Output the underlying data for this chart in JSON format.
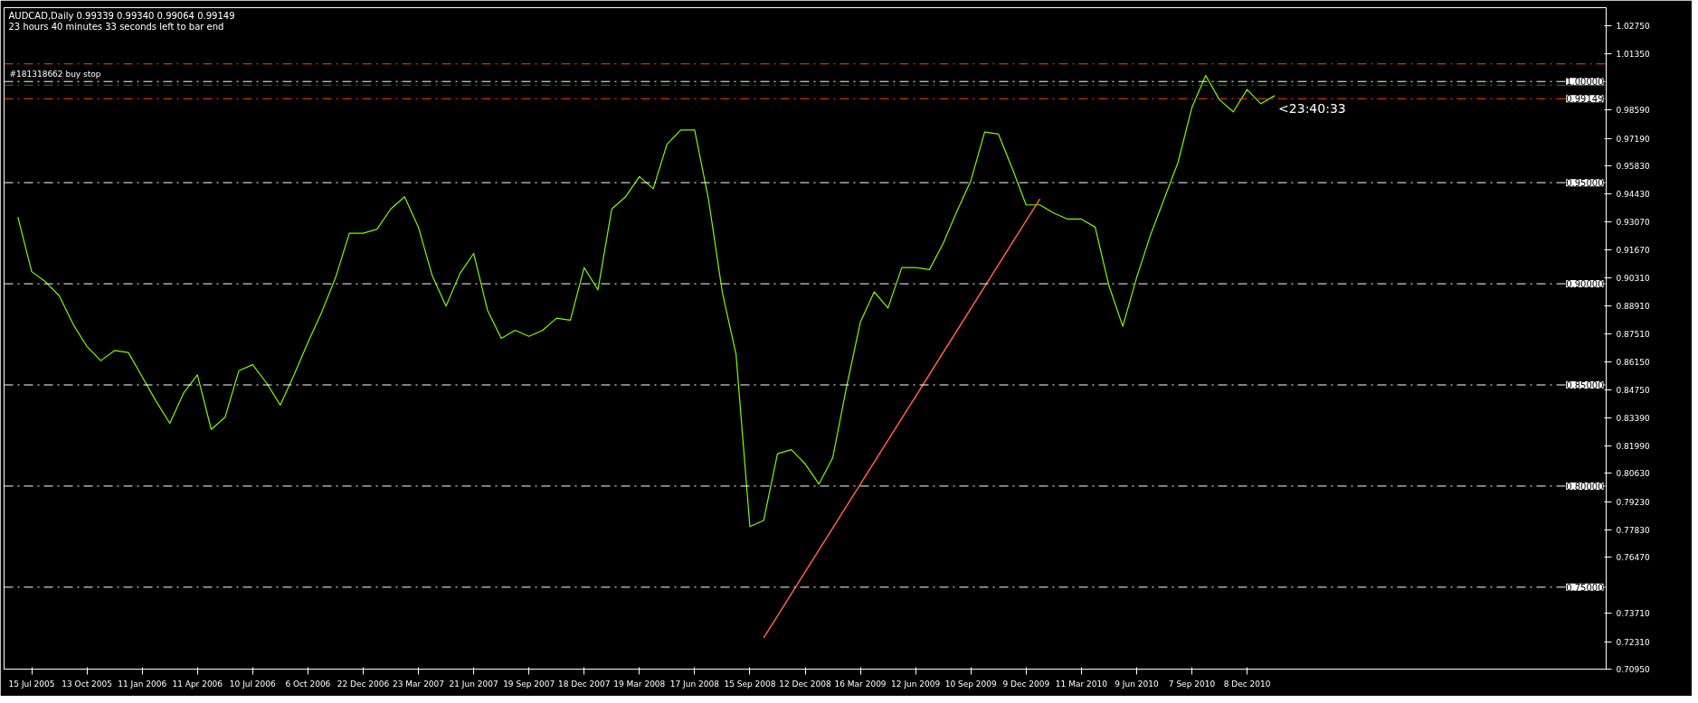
{
  "chart_data": {
    "type": "line",
    "title": "AUDCAD,Daily  0.99339 0.99340 0.99064 0.99149",
    "subtitle": "23 hours 40 minutes 33 seconds left to bar end",
    "categories": [
      null,
      "15 Jul 2005",
      null,
      null,
      null,
      "13 Oct 2005",
      null,
      null,
      null,
      "11 Jan 2006",
      null,
      null,
      null,
      "11 Apr 2006",
      null,
      null,
      null,
      "10 Jul 2006",
      null,
      null,
      null,
      "6 Oct 2006",
      null,
      null,
      null,
      "22 Dec 2006",
      null,
      null,
      null,
      "23 Mar 2007",
      null,
      null,
      null,
      "21 Jun 2007",
      null,
      null,
      null,
      "19 Sep 2007",
      null,
      null,
      null,
      "18 Dec 2007",
      null,
      null,
      null,
      "19 Mar 2008",
      null,
      null,
      null,
      "17 Jun 2008",
      null,
      null,
      null,
      "15 Sep 2008",
      null,
      null,
      null,
      "12 Dec 2008",
      null,
      null,
      null,
      "16 Mar 2009",
      null,
      null,
      null,
      "12 Jun 2009",
      null,
      null,
      null,
      "10 Sep 2009",
      null,
      null,
      null,
      "9 Dec 2009",
      null,
      null,
      null,
      "11 Mar 2010",
      null,
      null,
      null,
      "9 Jun 2010",
      null,
      null,
      null,
      "7 Sep 2010",
      null,
      null,
      null,
      "8 Dec 2010",
      null,
      null,
      null,
      null,
      null,
      null,
      null,
      null,
      null,
      null,
      null,
      null,
      null,
      null,
      null,
      null,
      null,
      null,
      null,
      null,
      null,
      null,
      null,
      null,
      null
    ],
    "series": [
      {
        "color": "#7cfc00",
        "values": [
          0.933,
          0.906,
          0.901,
          0.894,
          0.88,
          0.869,
          0.862,
          0.867,
          0.866,
          0.854,
          0.842,
          0.831,
          0.846,
          0.855,
          0.828,
          0.834,
          0.857,
          0.86,
          0.851,
          0.84,
          0.855,
          0.871,
          0.886,
          0.903,
          0.925,
          0.925,
          0.927,
          0.937,
          0.943,
          0.928,
          0.904,
          0.889,
          0.905,
          0.915,
          0.887,
          0.873,
          0.877,
          0.874,
          0.877,
          0.883,
          0.882,
          0.908,
          0.897,
          0.937,
          0.943,
          0.953,
          0.947,
          0.969,
          0.976,
          0.976,
          0.942,
          0.896,
          0.865,
          0.78,
          0.783,
          0.816,
          0.818,
          0.811,
          0.801,
          0.814,
          0.849,
          0.881,
          0.896,
          0.888,
          0.908,
          0.908,
          0.907,
          0.92,
          0.936,
          0.951,
          0.975,
          0.974,
          0.957,
          0.939,
          0.939,
          0.935,
          0.932,
          0.932,
          0.928,
          0.899,
          0.879,
          0.903,
          0.924,
          0.942,
          0.96,
          0.987,
          1.003,
          0.991,
          0.985,
          0.996,
          0.989,
          0.993,
          null,
          null,
          null,
          null,
          null,
          null,
          null,
          null,
          null,
          null,
          null,
          null,
          null,
          null,
          null,
          null,
          null,
          null,
          null,
          null,
          null,
          null,
          null
        ]
      },
      {
        "type": "line",
        "color": "#ff6040",
        "values": [
          null,
          null,
          null,
          null,
          null,
          null,
          null,
          null,
          null,
          null,
          null,
          null,
          null,
          null,
          null,
          null,
          null,
          null,
          null,
          null,
          null,
          null,
          null,
          null,
          null,
          null,
          null,
          null,
          null,
          null,
          null,
          null,
          null,
          null,
          null,
          null,
          null,
          null,
          null,
          null,
          null,
          null,
          null,
          null,
          null,
          null,
          null,
          null,
          null,
          null,
          null,
          null,
          null,
          null,
          0.725,
          null,
          null,
          null,
          null,
          null,
          null,
          null,
          null,
          null,
          null,
          null,
          null,
          null,
          null,
          null,
          null,
          null,
          null,
          null,
          0.942,
          null,
          null,
          null,
          null,
          null,
          null,
          null,
          null,
          null,
          null,
          null,
          null,
          null,
          null,
          null,
          null,
          null,
          null,
          null,
          null,
          null,
          null,
          null,
          null,
          null,
          null,
          null,
          null,
          null,
          null,
          null,
          null,
          null,
          null,
          null,
          null,
          null,
          null,
          null,
          null
        ]
      }
    ],
    "ylim": [
      0.7095,
      1.0365
    ],
    "yticks": [
      {
        "value": 1.0275,
        "label": "1.02750"
      },
      {
        "value": 1.0135,
        "label": "1.01350"
      },
      {
        "value": 0.9859,
        "label": "0.98590"
      },
      {
        "value": 0.9719,
        "label": "0.97190"
      },
      {
        "value": 0.9583,
        "label": "0.95830"
      },
      {
        "value": 0.9443,
        "label": "0.94430"
      },
      {
        "value": 0.9307,
        "label": "0.93070"
      },
      {
        "value": 0.9167,
        "label": "0.91670"
      },
      {
        "value": 0.9031,
        "label": "0.90310"
      },
      {
        "value": 0.8891,
        "label": "0.88910"
      },
      {
        "value": 0.8751,
        "label": "0.87510"
      },
      {
        "value": 0.8615,
        "label": "0.86150"
      },
      {
        "value": 0.8475,
        "label": "0.84750"
      },
      {
        "value": 0.8339,
        "label": "0.83390"
      },
      {
        "value": 0.8199,
        "label": "0.81990"
      },
      {
        "value": 0.8063,
        "label": "0.80630"
      },
      {
        "value": 0.7923,
        "label": "0.79230"
      },
      {
        "value": 0.7783,
        "label": "0.77830"
      },
      {
        "value": 0.7647,
        "label": "0.76470"
      },
      {
        "value": 0.7371,
        "label": "0.73710"
      },
      {
        "value": 0.7231,
        "label": "0.72310"
      },
      {
        "value": 0.7095,
        "label": "0.70950"
      }
    ],
    "ref_lines": [
      {
        "axis": "y",
        "value": 1.0087,
        "color": "#ff4500",
        "line_style": "dashed"
      },
      {
        "axis": "y",
        "value": 1.0,
        "label": "1.00000",
        "color": "#ffffff",
        "line_style": "dashed"
      },
      {
        "axis": "y",
        "value": 0.9982,
        "color": "#1e8c1e",
        "line_style": "dashed"
      },
      {
        "axis": "y",
        "value": 0.99149,
        "label": "0.99149",
        "color": "#ff4500",
        "line_style": "dashed"
      },
      {
        "axis": "y",
        "value": 0.95,
        "label": "0.95000",
        "color": "#ffffff",
        "line_style": "dashed"
      },
      {
        "axis": "y",
        "value": 0.9,
        "label": "0.90000",
        "color": "#ffffff",
        "line_style": "dashed"
      },
      {
        "axis": "y",
        "value": 0.85,
        "label": "0.85000",
        "color": "#ffffff",
        "line_style": "dashed"
      },
      {
        "axis": "y",
        "value": 0.8,
        "label": "0.80000",
        "color": "#ffffff",
        "line_style": "dashed"
      },
      {
        "axis": "y",
        "value": 0.75,
        "label": "0.75000",
        "color": "#ffffff",
        "line_style": "dashed"
      }
    ],
    "annotations": [
      {
        "text": "#181318662 buy stop",
        "y": 1.0
      },
      {
        "text": "<23:40:33",
        "y": 0.99149
      }
    ],
    "marker": "none",
    "line_style": "solid",
    "grid": false
  }
}
